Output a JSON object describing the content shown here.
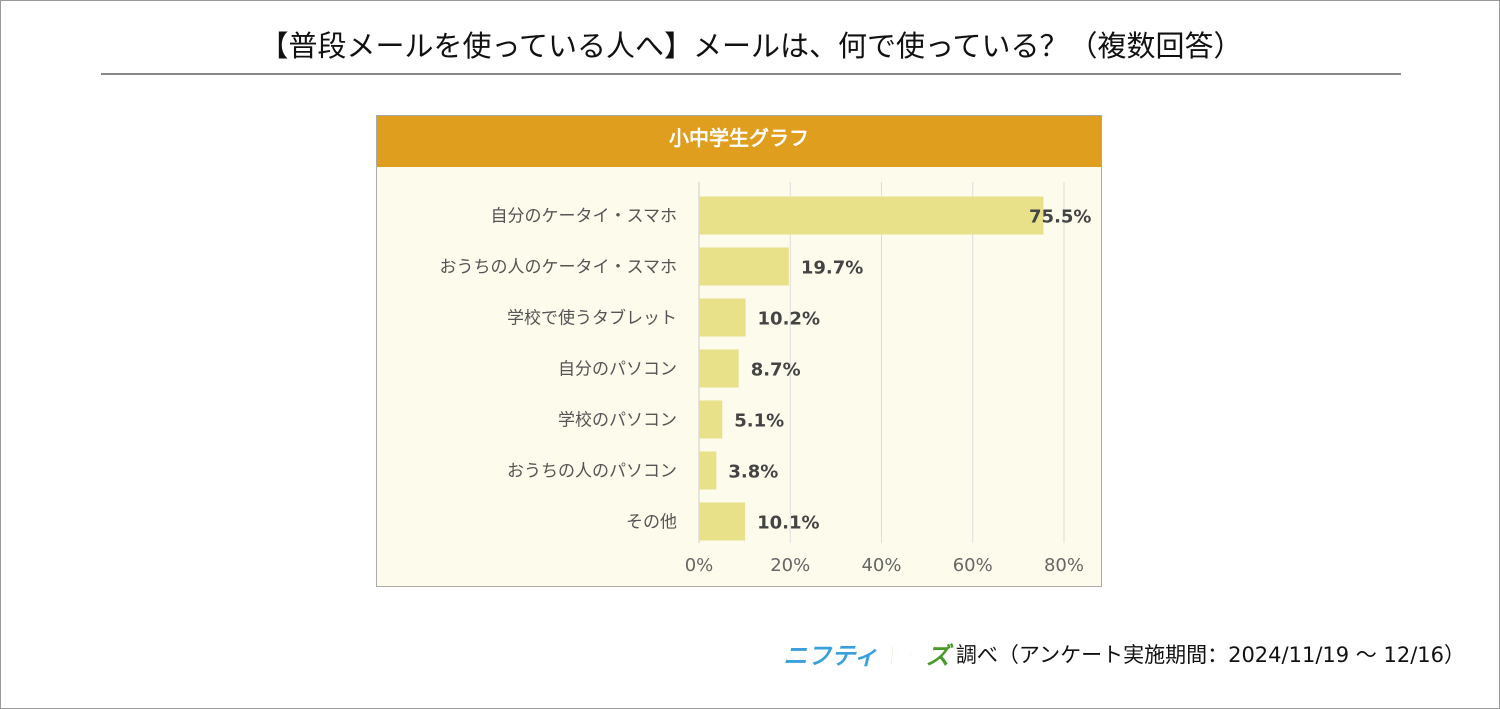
{
  "title": "【普段メールを使っている人へ】メールは、何で使っている？（複数回答）",
  "footer": {
    "logo_part1": "ニフティ",
    "logo_part2": "キッ",
    "logo_part3": "ズ",
    "text": "調べ（アンケート実施期間：2024/11/19 ～ 12/16）"
  },
  "colors": {
    "header": "#e09e1e",
    "bar": "#e8e18a",
    "background": "#fdfbec",
    "grid": "#dddddd"
  },
  "chart_data": {
    "type": "bar",
    "orientation": "horizontal",
    "title": "小中学生グラフ",
    "categories": [
      "自分のケータイ・スマホ",
      "おうちの人のケータイ・スマホ",
      "学校で使うタブレット",
      "自分のパソコン",
      "学校のパソコン",
      "おうちの人のパソコン",
      "その他"
    ],
    "values": [
      75.5,
      19.7,
      10.2,
      8.7,
      5.1,
      3.8,
      10.1
    ],
    "value_labels": [
      "75.5%",
      "19.7%",
      "10.2%",
      "8.7%",
      "5.1%",
      "3.8%",
      "10.1%"
    ],
    "xlim": [
      0,
      80
    ],
    "xticks": [
      "0%",
      "20%",
      "40%",
      "60%",
      "80%"
    ],
    "grid": true,
    "xlabel": "",
    "ylabel": ""
  }
}
